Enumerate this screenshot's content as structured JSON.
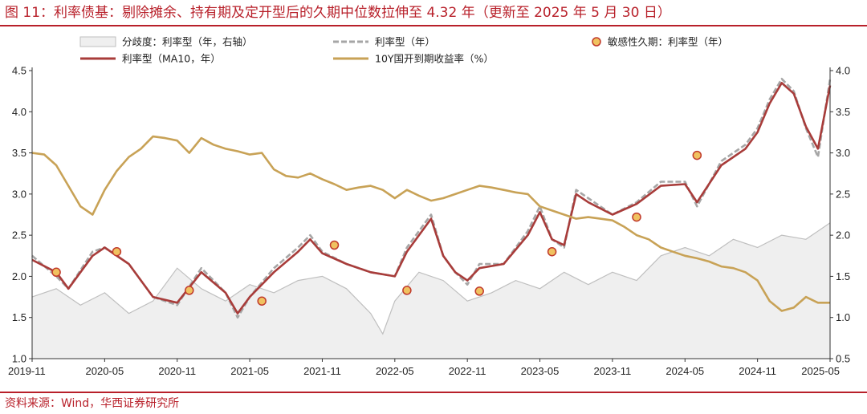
{
  "title": "图 11：利率债基：剔除摊余、持有期及定开型后的久期中位数拉伸至 4.32 年（更新至 2025 年 5 月 30 日）",
  "source": "资料来源：Wind，华西证券研究所",
  "chart_data": {
    "type": "line",
    "title": "图 11：利率债基：剔除摊余、持有期及定开型后的久期中位数拉伸至 4.32 年（更新至 2025 年 5 月 30 日）",
    "xlabel": "",
    "ylabel": "",
    "x_ticks": [
      "2019-11",
      "2020-05",
      "2020-11",
      "2021-05",
      "2021-11",
      "2022-05",
      "2022-11",
      "2023-05",
      "2023-11",
      "2024-05",
      "2024-11",
      "2025-05"
    ],
    "y_left": {
      "lim": [
        1.0,
        4.5
      ],
      "ticks": [
        "1.0",
        "1.5",
        "2.0",
        "2.5",
        "3.0",
        "3.5",
        "4.0",
        "4.5"
      ]
    },
    "y_right": {
      "lim": [
        0.5,
        4.0
      ],
      "ticks": [
        "0.5",
        "1.0",
        "1.5",
        "2.0",
        "2.5",
        "3.0",
        "3.5",
        "4.0"
      ]
    },
    "legend_position": "top",
    "grid": false,
    "series": [
      {
        "name": "分歧度：利率型（年，右轴）",
        "type": "area",
        "axis": "right",
        "color": "#bfbfbf",
        "fill": "#efefef",
        "points": [
          [
            "2019-11",
            1.25
          ],
          [
            "2020-01",
            1.35
          ],
          [
            "2020-03",
            1.15
          ],
          [
            "2020-05",
            1.3
          ],
          [
            "2020-07",
            1.05
          ],
          [
            "2020-09",
            1.2
          ],
          [
            "2020-11",
            1.6
          ],
          [
            "2021-01",
            1.35
          ],
          [
            "2021-03",
            1.2
          ],
          [
            "2021-05",
            1.4
          ],
          [
            "2021-07",
            1.3
          ],
          [
            "2021-09",
            1.45
          ],
          [
            "2021-11",
            1.5
          ],
          [
            "2022-01",
            1.35
          ],
          [
            "2022-03",
            1.05
          ],
          [
            "2022-04",
            0.8
          ],
          [
            "2022-05",
            1.2
          ],
          [
            "2022-07",
            1.55
          ],
          [
            "2022-09",
            1.45
          ],
          [
            "2022-11",
            1.2
          ],
          [
            "2023-01",
            1.3
          ],
          [
            "2023-03",
            1.45
          ],
          [
            "2023-05",
            1.35
          ],
          [
            "2023-07",
            1.55
          ],
          [
            "2023-09",
            1.4
          ],
          [
            "2023-11",
            1.55
          ],
          [
            "2024-01",
            1.45
          ],
          [
            "2024-03",
            1.75
          ],
          [
            "2024-05",
            1.85
          ],
          [
            "2024-07",
            1.75
          ],
          [
            "2024-09",
            1.95
          ],
          [
            "2024-11",
            1.85
          ],
          [
            "2025-01",
            2.0
          ],
          [
            "2025-03",
            1.95
          ],
          [
            "2025-05",
            2.15
          ]
        ]
      },
      {
        "name": "利率型（年）",
        "type": "line",
        "axis": "left",
        "color": "#a6a6a6",
        "dash": true,
        "points": [
          [
            "2019-11",
            2.25
          ],
          [
            "2020-01",
            2.0
          ],
          [
            "2020-02",
            1.85
          ],
          [
            "2020-04",
            2.3
          ],
          [
            "2020-05",
            2.35
          ],
          [
            "2020-07",
            2.15
          ],
          [
            "2020-09",
            1.75
          ],
          [
            "2020-11",
            1.65
          ],
          [
            "2021-01",
            2.1
          ],
          [
            "2021-03",
            1.8
          ],
          [
            "2021-04",
            1.5
          ],
          [
            "2021-05",
            1.75
          ],
          [
            "2021-07",
            2.1
          ],
          [
            "2021-09",
            2.35
          ],
          [
            "2021-10",
            2.5
          ],
          [
            "2021-11",
            2.3
          ],
          [
            "2022-01",
            2.15
          ],
          [
            "2022-03",
            2.05
          ],
          [
            "2022-05",
            2.0
          ],
          [
            "2022-06",
            2.35
          ],
          [
            "2022-08",
            2.75
          ],
          [
            "2022-09",
            2.25
          ],
          [
            "2022-10",
            2.05
          ],
          [
            "2022-11",
            1.9
          ],
          [
            "2022-12",
            2.15
          ],
          [
            "2023-02",
            2.15
          ],
          [
            "2023-04",
            2.55
          ],
          [
            "2023-05",
            2.85
          ],
          [
            "2023-06",
            2.45
          ],
          [
            "2023-07",
            2.35
          ],
          [
            "2023-08",
            3.05
          ],
          [
            "2023-09",
            2.95
          ],
          [
            "2023-11",
            2.75
          ],
          [
            "2024-01",
            2.9
          ],
          [
            "2024-03",
            3.15
          ],
          [
            "2024-05",
            3.15
          ],
          [
            "2024-06",
            2.85
          ],
          [
            "2024-08",
            3.4
          ],
          [
            "2024-10",
            3.6
          ],
          [
            "2024-11",
            3.8
          ],
          [
            "2024-12",
            4.15
          ],
          [
            "2025-01",
            4.4
          ],
          [
            "2025-02",
            4.25
          ],
          [
            "2025-03",
            3.8
          ],
          [
            "2025-04",
            3.45
          ],
          [
            "2025-05",
            4.4
          ]
        ]
      },
      {
        "name": "利率型（MA10，年）",
        "type": "line",
        "axis": "left",
        "color": "#a83c3a",
        "points": [
          [
            "2019-11",
            2.2
          ],
          [
            "2020-01",
            2.05
          ],
          [
            "2020-02",
            1.85
          ],
          [
            "2020-04",
            2.25
          ],
          [
            "2020-05",
            2.35
          ],
          [
            "2020-07",
            2.15
          ],
          [
            "2020-09",
            1.75
          ],
          [
            "2020-11",
            1.68
          ],
          [
            "2021-01",
            2.05
          ],
          [
            "2021-03",
            1.8
          ],
          [
            "2021-04",
            1.55
          ],
          [
            "2021-05",
            1.75
          ],
          [
            "2021-07",
            2.05
          ],
          [
            "2021-09",
            2.3
          ],
          [
            "2021-10",
            2.45
          ],
          [
            "2021-11",
            2.28
          ],
          [
            "2022-01",
            2.15
          ],
          [
            "2022-03",
            2.05
          ],
          [
            "2022-05",
            2.0
          ],
          [
            "2022-06",
            2.3
          ],
          [
            "2022-08",
            2.7
          ],
          [
            "2022-09",
            2.25
          ],
          [
            "2022-10",
            2.05
          ],
          [
            "2022-11",
            1.95
          ],
          [
            "2022-12",
            2.1
          ],
          [
            "2023-02",
            2.15
          ],
          [
            "2023-04",
            2.5
          ],
          [
            "2023-05",
            2.78
          ],
          [
            "2023-06",
            2.45
          ],
          [
            "2023-07",
            2.38
          ],
          [
            "2023-08",
            3.0
          ],
          [
            "2023-09",
            2.9
          ],
          [
            "2023-11",
            2.75
          ],
          [
            "2024-01",
            2.88
          ],
          [
            "2024-03",
            3.1
          ],
          [
            "2024-05",
            3.12
          ],
          [
            "2024-06",
            2.9
          ],
          [
            "2024-08",
            3.35
          ],
          [
            "2024-10",
            3.55
          ],
          [
            "2024-11",
            3.75
          ],
          [
            "2024-12",
            4.1
          ],
          [
            "2025-01",
            4.35
          ],
          [
            "2025-02",
            4.22
          ],
          [
            "2025-03",
            3.82
          ],
          [
            "2025-04",
            3.55
          ],
          [
            "2025-05",
            4.32
          ]
        ]
      },
      {
        "name": "10Y国开到期收益率（%）",
        "type": "line",
        "axis": "right",
        "color": "#c8a256",
        "points": [
          [
            "2019-11",
            3.0
          ],
          [
            "2019-12",
            2.98
          ],
          [
            "2020-01",
            2.85
          ],
          [
            "2020-02",
            2.6
          ],
          [
            "2020-03",
            2.35
          ],
          [
            "2020-04",
            2.25
          ],
          [
            "2020-05",
            2.55
          ],
          [
            "2020-06",
            2.78
          ],
          [
            "2020-07",
            2.95
          ],
          [
            "2020-08",
            3.05
          ],
          [
            "2020-09",
            3.2
          ],
          [
            "2020-10",
            3.18
          ],
          [
            "2020-11",
            3.15
          ],
          [
            "2020-12",
            3.0
          ],
          [
            "2021-01",
            3.18
          ],
          [
            "2021-02",
            3.1
          ],
          [
            "2021-03",
            3.05
          ],
          [
            "2021-04",
            3.02
          ],
          [
            "2021-05",
            2.98
          ],
          [
            "2021-06",
            3.0
          ],
          [
            "2021-07",
            2.8
          ],
          [
            "2021-08",
            2.72
          ],
          [
            "2021-09",
            2.7
          ],
          [
            "2021-10",
            2.75
          ],
          [
            "2021-11",
            2.68
          ],
          [
            "2021-12",
            2.62
          ],
          [
            "2022-01",
            2.55
          ],
          [
            "2022-02",
            2.58
          ],
          [
            "2022-03",
            2.6
          ],
          [
            "2022-04",
            2.55
          ],
          [
            "2022-05",
            2.45
          ],
          [
            "2022-06",
            2.55
          ],
          [
            "2022-07",
            2.48
          ],
          [
            "2022-08",
            2.42
          ],
          [
            "2022-09",
            2.45
          ],
          [
            "2022-10",
            2.5
          ],
          [
            "2022-11",
            2.55
          ],
          [
            "2022-12",
            2.6
          ],
          [
            "2023-01",
            2.58
          ],
          [
            "2023-02",
            2.55
          ],
          [
            "2023-03",
            2.52
          ],
          [
            "2023-04",
            2.5
          ],
          [
            "2023-05",
            2.35
          ],
          [
            "2023-06",
            2.3
          ],
          [
            "2023-07",
            2.25
          ],
          [
            "2023-08",
            2.2
          ],
          [
            "2023-09",
            2.22
          ],
          [
            "2023-10",
            2.2
          ],
          [
            "2023-11",
            2.18
          ],
          [
            "2023-12",
            2.1
          ],
          [
            "2024-01",
            2.0
          ],
          [
            "2024-02",
            1.95
          ],
          [
            "2024-03",
            1.85
          ],
          [
            "2024-04",
            1.8
          ],
          [
            "2024-05",
            1.75
          ],
          [
            "2024-06",
            1.72
          ],
          [
            "2024-07",
            1.68
          ],
          [
            "2024-08",
            1.62
          ],
          [
            "2024-09",
            1.6
          ],
          [
            "2024-10",
            1.55
          ],
          [
            "2024-11",
            1.45
          ],
          [
            "2024-12",
            1.2
          ],
          [
            "2025-01",
            1.08
          ],
          [
            "2025-02",
            1.12
          ],
          [
            "2025-03",
            1.25
          ],
          [
            "2025-04",
            1.18
          ],
          [
            "2025-05",
            1.18
          ]
        ]
      },
      {
        "name": "敏感性久期：利率型（年）",
        "type": "scatter",
        "axis": "left",
        "color": "#f0c260",
        "stroke": "#c0392b",
        "points": [
          [
            "2020-01",
            2.05
          ],
          [
            "2020-06",
            2.3
          ],
          [
            "2020-12",
            1.83
          ],
          [
            "2021-06",
            1.7
          ],
          [
            "2021-12",
            2.38
          ],
          [
            "2022-06",
            1.83
          ],
          [
            "2022-12",
            1.82
          ],
          [
            "2023-06",
            2.3
          ],
          [
            "2024-01",
            2.72
          ],
          [
            "2024-06",
            3.47
          ]
        ]
      }
    ]
  }
}
